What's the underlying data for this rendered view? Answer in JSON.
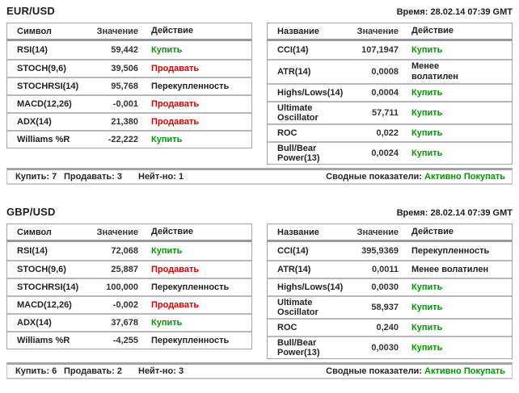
{
  "colors": {
    "buy": "#009900",
    "sell": "#dd0000",
    "neutral_text": "#262626"
  },
  "sections": [
    {
      "pair": "EUR/USD",
      "time": "Время: 28.02.14 07:39 GMT",
      "left_table": {
        "headers": [
          "Символ",
          "Значение",
          "Действие"
        ],
        "rows": [
          {
            "name": "RSI(14)",
            "value": "59,442",
            "action": "Купить",
            "action_type": "buy"
          },
          {
            "name": "STOCH(9,6)",
            "value": "39,506",
            "action": "Продавать",
            "action_type": "sell"
          },
          {
            "name": "STOCHRSI(14)",
            "value": "95,768",
            "action": "Перекупленность",
            "action_type": "neutral"
          },
          {
            "name": "MACD(12,26)",
            "value": "-0,001",
            "action": "Продавать",
            "action_type": "sell"
          },
          {
            "name": "ADX(14)",
            "value": "21,380",
            "action": "Продавать",
            "action_type": "sell"
          },
          {
            "name": "Williams %R",
            "value": "-22,222",
            "action": "Купить",
            "action_type": "buy"
          }
        ]
      },
      "right_table": {
        "headers": [
          "Название",
          "Значение",
          "Действие"
        ],
        "rows": [
          {
            "name": "CCI(14)",
            "value": "107,1947",
            "action": "Купить",
            "action_type": "buy"
          },
          {
            "name": "ATR(14)",
            "value": "0,0008",
            "action": "Менее\nволатилен",
            "action_type": "neutral"
          },
          {
            "name": "Highs/Lows(14)",
            "value": "0,0004",
            "action": "Купить",
            "action_type": "buy"
          },
          {
            "name": "Ultimate Oscillator",
            "value": "57,711",
            "action": "Купить",
            "action_type": "buy"
          },
          {
            "name": "ROC",
            "value": "0,022",
            "action": "Купить",
            "action_type": "buy"
          },
          {
            "name": "Bull/Bear Power(13)",
            "value": "0,0024",
            "action": "Купить",
            "action_type": "buy"
          }
        ]
      },
      "summary": {
        "buy": "Купить: 7",
        "sell": "Продавать: 3",
        "neutral": "Нейт-но: 1",
        "label": "Сводные показатели:",
        "verdict": "Активно Покупать"
      }
    },
    {
      "pair": "GBP/USD",
      "time": "Время: 28.02.14 07:39 GMT",
      "left_table": {
        "headers": [
          "Символ",
          "Значение",
          "Действие"
        ],
        "rows": [
          {
            "name": "RSI(14)",
            "value": "72,068",
            "action": "Купить",
            "action_type": "buy"
          },
          {
            "name": "STOCH(9,6)",
            "value": "25,887",
            "action": "Продавать",
            "action_type": "sell"
          },
          {
            "name": "STOCHRSI(14)",
            "value": "100,000",
            "action": "Перекупленность",
            "action_type": "neutral"
          },
          {
            "name": "MACD(12,26)",
            "value": "-0,002",
            "action": "Продавать",
            "action_type": "sell"
          },
          {
            "name": "ADX(14)",
            "value": "37,678",
            "action": "Купить",
            "action_type": "buy"
          },
          {
            "name": "Williams %R",
            "value": "-4,255",
            "action": "Перекупленность",
            "action_type": "neutral"
          }
        ]
      },
      "right_table": {
        "headers": [
          "Название",
          "Значение",
          "Действие"
        ],
        "rows": [
          {
            "name": "CCI(14)",
            "value": "395,9369",
            "action": "Перекупленность",
            "action_type": "neutral"
          },
          {
            "name": "ATR(14)",
            "value": "0,0011",
            "action": "Менее волатилен",
            "action_type": "neutral"
          },
          {
            "name": "Highs/Lows(14)",
            "value": "0,0030",
            "action": "Купить",
            "action_type": "buy"
          },
          {
            "name": "Ultimate Oscillator",
            "value": "58,937",
            "action": "Купить",
            "action_type": "buy"
          },
          {
            "name": "ROC",
            "value": "0,240",
            "action": "Купить",
            "action_type": "buy"
          },
          {
            "name": "Bull/Bear Power(13)",
            "value": "0,0030",
            "action": "Купить",
            "action_type": "buy"
          }
        ]
      },
      "summary": {
        "buy": "Купить: 6",
        "sell": "Продавать: 2",
        "neutral": "Нейт-но: 3",
        "label": "Сводные показатели:",
        "verdict": "Активно Покупать"
      }
    }
  ]
}
